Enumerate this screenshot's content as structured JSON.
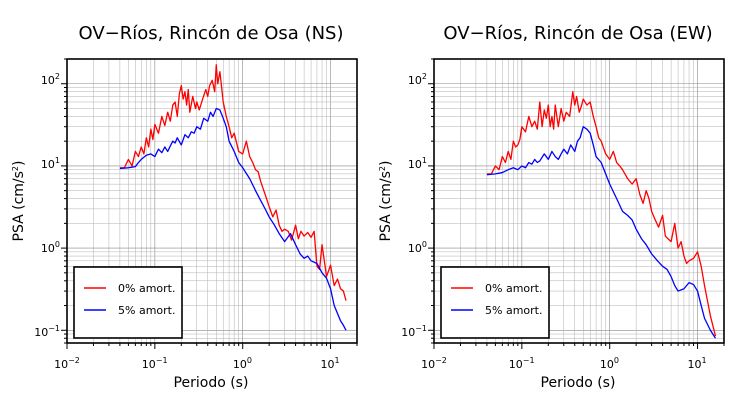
{
  "colors": {
    "undamped": "#ff0000",
    "damped": "#0000ff"
  },
  "chart_data": [
    {
      "type": "line",
      "title": "OV−Ríos, Rincón de Osa (NS)",
      "xlabel": "Periodo (s)",
      "ylabel_main": "PSA (cm/s",
      "ylabel_sup": "2",
      "ylabel_end": ")",
      "xscale": "log",
      "yscale": "log",
      "xlim": [
        0.01,
        20
      ],
      "ylim": [
        0.07,
        200
      ],
      "x_ticks": [
        {
          "base": "10",
          "exp": "−2"
        },
        {
          "base": "10",
          "exp": "−1"
        },
        {
          "base": "10",
          "exp": "0"
        },
        {
          "base": "10",
          "exp": "1"
        }
      ],
      "y_ticks": [
        {
          "base": "10",
          "exp": "−1"
        },
        {
          "base": "10",
          "exp": "0"
        },
        {
          "base": "10",
          "exp": "1"
        },
        {
          "base": "10",
          "exp": "2"
        }
      ],
      "grid": true,
      "legend_position": "bottom-left",
      "series": [
        {
          "name": "0% amort.",
          "color": "#ff0000",
          "x": [
            0.04,
            0.045,
            0.05,
            0.055,
            0.06,
            0.065,
            0.07,
            0.075,
            0.08,
            0.085,
            0.09,
            0.095,
            0.1,
            0.11,
            0.12,
            0.13,
            0.14,
            0.15,
            0.16,
            0.17,
            0.18,
            0.19,
            0.2,
            0.21,
            0.22,
            0.23,
            0.24,
            0.25,
            0.27,
            0.29,
            0.3,
            0.32,
            0.35,
            0.38,
            0.4,
            0.42,
            0.45,
            0.48,
            0.5,
            0.52,
            0.55,
            0.6,
            0.65,
            0.7,
            0.75,
            0.8,
            0.9,
            1.0,
            1.1,
            1.2,
            1.3,
            1.4,
            1.5,
            1.6,
            1.8,
            2.0,
            2.2,
            2.4,
            2.6,
            2.8,
            3.0,
            3.3,
            3.6,
            4.0,
            4.3,
            4.6,
            5.0,
            5.5,
            6.0,
            6.5,
            7.0,
            7.5,
            8.0,
            9.0,
            10.0,
            11.0,
            12.0,
            13.0,
            14.0,
            15.0
          ],
          "y": [
            9.5,
            9.5,
            12,
            10,
            15,
            13,
            17,
            14,
            22,
            17,
            28,
            21,
            32,
            25,
            40,
            31,
            45,
            35,
            55,
            60,
            40,
            75,
            95,
            65,
            80,
            55,
            85,
            45,
            70,
            50,
            60,
            48,
            65,
            85,
            70,
            95,
            110,
            80,
            170,
            100,
            140,
            60,
            40,
            30,
            22,
            25,
            15,
            14,
            20,
            13,
            11,
            9,
            8.5,
            6.5,
            4.5,
            3.2,
            2.4,
            2.9,
            1.9,
            1.6,
            1.7,
            1.6,
            1.25,
            1.9,
            1.3,
            1.6,
            1.4,
            1.55,
            1.35,
            1.6,
            0.6,
            0.55,
            1.1,
            0.45,
            0.62,
            0.35,
            0.42,
            0.32,
            0.3,
            0.23
          ]
        },
        {
          "name": "5% amort.",
          "color": "#0000ff",
          "x": [
            0.04,
            0.05,
            0.06,
            0.065,
            0.07,
            0.08,
            0.09,
            0.1,
            0.11,
            0.12,
            0.13,
            0.14,
            0.15,
            0.16,
            0.17,
            0.18,
            0.2,
            0.22,
            0.24,
            0.26,
            0.28,
            0.3,
            0.33,
            0.36,
            0.4,
            0.43,
            0.46,
            0.5,
            0.55,
            0.6,
            0.65,
            0.7,
            0.8,
            0.9,
            1.0,
            1.2,
            1.4,
            1.6,
            1.8,
            2.0,
            2.3,
            2.6,
            3.0,
            3.5,
            4.0,
            4.5,
            5.0,
            5.5,
            6.0,
            7.0,
            8.0,
            9.0,
            10.0,
            11.0,
            12.0,
            13.0,
            14.0,
            15.0
          ],
          "y": [
            9.3,
            9.5,
            9.8,
            11,
            12,
            13.5,
            14,
            13,
            16,
            14.5,
            17,
            15,
            17.5,
            20,
            19,
            22,
            18,
            24,
            22,
            26,
            25,
            30,
            28,
            38,
            35,
            45,
            40,
            50,
            48,
            38,
            30,
            20,
            15,
            11,
            9.5,
            7,
            5,
            3.8,
            3,
            2.4,
            1.9,
            1.5,
            1.2,
            1.5,
            1.1,
            0.85,
            0.75,
            0.8,
            0.7,
            0.65,
            0.5,
            0.43,
            0.32,
            0.2,
            0.16,
            0.13,
            0.115,
            0.1
          ]
        }
      ]
    },
    {
      "type": "line",
      "title": "OV−Ríos, Rincón de Osa (EW)",
      "xlabel": "Periodo (s)",
      "ylabel_main": "PSA (cm/s",
      "ylabel_sup": "2",
      "ylabel_end": ")",
      "xscale": "log",
      "yscale": "log",
      "xlim": [
        0.01,
        20
      ],
      "ylim": [
        0.07,
        200
      ],
      "x_ticks": [
        {
          "base": "10",
          "exp": "−2"
        },
        {
          "base": "10",
          "exp": "−1"
        },
        {
          "base": "10",
          "exp": "0"
        },
        {
          "base": "10",
          "exp": "1"
        }
      ],
      "y_ticks": [
        {
          "base": "10",
          "exp": "−1"
        },
        {
          "base": "10",
          "exp": "0"
        },
        {
          "base": "10",
          "exp": "1"
        },
        {
          "base": "10",
          "exp": "2"
        }
      ],
      "grid": true,
      "legend_position": "bottom-left",
      "series": [
        {
          "name": "0% amort.",
          "color": "#ff0000",
          "x": [
            0.04,
            0.045,
            0.05,
            0.055,
            0.06,
            0.065,
            0.07,
            0.075,
            0.08,
            0.085,
            0.09,
            0.095,
            0.1,
            0.11,
            0.12,
            0.13,
            0.14,
            0.15,
            0.16,
            0.17,
            0.18,
            0.19,
            0.2,
            0.21,
            0.22,
            0.23,
            0.24,
            0.26,
            0.28,
            0.3,
            0.32,
            0.35,
            0.38,
            0.4,
            0.42,
            0.45,
            0.48,
            0.5,
            0.55,
            0.6,
            0.65,
            0.7,
            0.75,
            0.8,
            0.9,
            1.0,
            1.1,
            1.2,
            1.3,
            1.4,
            1.6,
            1.8,
            2.0,
            2.2,
            2.4,
            2.6,
            2.8,
            3.0,
            3.3,
            3.6,
            4.0,
            4.3,
            4.6,
            5.0,
            5.5,
            6.0,
            6.5,
            7.0,
            7.5,
            8.0,
            9.0,
            10.0,
            11.0,
            12.0,
            14.0,
            16.0
          ],
          "y": [
            8,
            8,
            10,
            9,
            13,
            11,
            15,
            12,
            20,
            17,
            18,
            21,
            30,
            26,
            40,
            30,
            35,
            28,
            60,
            30,
            48,
            38,
            55,
            30,
            40,
            28,
            55,
            30,
            50,
            35,
            45,
            40,
            80,
            55,
            70,
            45,
            55,
            65,
            55,
            60,
            40,
            30,
            22,
            20,
            14,
            12,
            15,
            11,
            10,
            9,
            7,
            6,
            7,
            4.5,
            3.5,
            5,
            4,
            2.8,
            2.2,
            1.8,
            2.5,
            1.4,
            1.3,
            1.2,
            2.0,
            1.0,
            1.2,
            0.8,
            0.65,
            0.7,
            0.75,
            0.9,
            0.6,
            0.35,
            0.15,
            0.085
          ]
        },
        {
          "name": "5% amort.",
          "color": "#0000ff",
          "x": [
            0.04,
            0.05,
            0.06,
            0.07,
            0.08,
            0.09,
            0.1,
            0.11,
            0.12,
            0.13,
            0.14,
            0.15,
            0.16,
            0.18,
            0.2,
            0.22,
            0.24,
            0.26,
            0.28,
            0.3,
            0.33,
            0.36,
            0.4,
            0.43,
            0.46,
            0.5,
            0.55,
            0.6,
            0.65,
            0.7,
            0.8,
            0.9,
            1.0,
            1.2,
            1.4,
            1.6,
            1.8,
            2.0,
            2.3,
            2.6,
            3.0,
            3.5,
            4.0,
            4.5,
            5.0,
            5.5,
            6.0,
            7.0,
            8.0,
            9.0,
            10.0,
            11.0,
            12.0,
            14.0,
            16.0
          ],
          "y": [
            7.8,
            8,
            8.3,
            9,
            9.5,
            9,
            10,
            9.5,
            11,
            10.5,
            12,
            11,
            11.5,
            14,
            12,
            15,
            13,
            12,
            14,
            16,
            14,
            18,
            15,
            20,
            22,
            30,
            28,
            25,
            18,
            13,
            11,
            8,
            6,
            4,
            2.8,
            2.5,
            2.2,
            1.7,
            1.3,
            1.1,
            0.85,
            0.7,
            0.6,
            0.55,
            0.45,
            0.35,
            0.3,
            0.32,
            0.38,
            0.36,
            0.3,
            0.2,
            0.14,
            0.1,
            0.08
          ]
        }
      ]
    }
  ]
}
